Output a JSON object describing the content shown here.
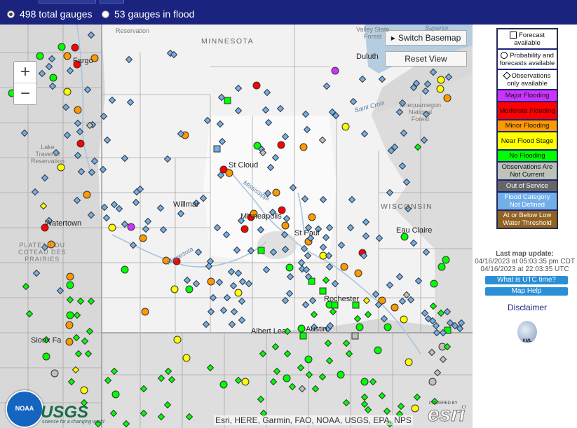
{
  "header": {
    "options": [
      {
        "label": "498 total gauges",
        "selected": true
      },
      {
        "label": "53 gauges in flood",
        "selected": false
      }
    ]
  },
  "map": {
    "zoom_in": "+",
    "zoom_out": "−",
    "switch_basemap": "Switch Basemap",
    "reset_view": "Reset View",
    "attribution": "Esri, HERE, Garmin, FAO, NOAA, USGS, EPA, NPS",
    "logo_noaa": "NOAA",
    "logo_usgs": "USGS",
    "logo_usgs_tagline": "science for a changing world",
    "logo_esri": "esri",
    "logo_esri_powered": "POWERED BY",
    "labels": {
      "minnesota": "MINNESOTA",
      "wisconsin": "WISCONSIN",
      "duluth": "Duluth",
      "st_cloud": "St Cloud",
      "willmar": "Willmar",
      "minneapolis": "Minneapolis",
      "st_paul": "St Paul",
      "eau_claire": "Eau Claire",
      "albert_lea": "Albert Lea",
      "austin": "Austin",
      "rochester": "Rochester",
      "watertown": "Watertown",
      "sioux_falls": "Sioux Fa",
      "fargo": "Fargo",
      "reservation": "Reservation",
      "lake_traverse": "Lake\nTraverse\nReservation",
      "plateau": "PLATEAU DU\nCOTEAU DES\nPRAIRIES",
      "superior": "Superior",
      "valley_state_forest": "Valley State\nForest",
      "chequamegon": "Chequamegon\nNational\nForest",
      "saint_croix": "Saint Croix",
      "mississippi": "Mississippi",
      "minnesota_river": "Minnesota"
    }
  },
  "legend": {
    "symbols": [
      {
        "shape": "square",
        "label": "Forecast available"
      },
      {
        "shape": "circle",
        "label": "Probability and forecasts available"
      },
      {
        "shape": "diamond",
        "label": "Observations only available"
      }
    ],
    "categories": [
      {
        "label": "Major Flooding",
        "color": "#cc33ff"
      },
      {
        "label": "Moderate Flooding",
        "color": "#ff0000"
      },
      {
        "label": "Minor Flooding",
        "color": "#ff9900"
      },
      {
        "label": "Near Flood Stage",
        "color": "#ffff00"
      },
      {
        "label": "No Flooding",
        "color": "#00ff00"
      },
      {
        "label": "Observations Are Not Current",
        "color": "#bdc2bb"
      },
      {
        "label": "Out of Service",
        "color": "#666666"
      },
      {
        "label": "Flood Category Not Defined",
        "color": "#72afe9"
      },
      {
        "label": "At or Below Low Water Threshold",
        "color": "#906320"
      }
    ]
  },
  "side": {
    "last_update_title": "Last map update:",
    "last_update_local": "04/16/2023 at 05:03:35 pm CDT",
    "last_update_utc": "04/16/2023 at 22:03:35 UTC",
    "utc_button": "What is UTC time?",
    "help_button": "Map Help",
    "disclaimer": "Disclaimer",
    "kml": "KML"
  },
  "gauge_colors": {
    "major": "#cc33ff",
    "moderate": "#ff0000",
    "minor": "#ff9900",
    "near": "#ffff00",
    "none": "#00ff00",
    "not_current": "#bdc2bb",
    "out_of_service": "#666666",
    "undefined": "#72afe9",
    "low_water": "#906320"
  }
}
